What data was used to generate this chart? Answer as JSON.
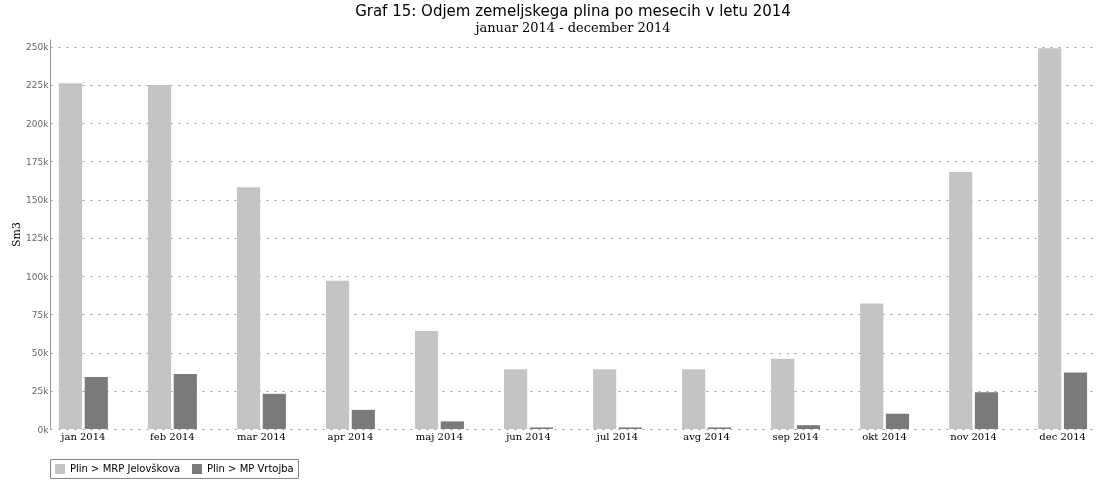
{
  "chart_data": {
    "type": "bar",
    "title": "Graf 15: Odjem zemeljskega plina po mesecih v letu 2014",
    "subtitle": "januar 2014 - december 2014",
    "ylabel": "Sm3",
    "categories": [
      "jan 2014",
      "feb 2014",
      "mar 2014",
      "apr 2014",
      "maj 2014",
      "jun 2014",
      "jul 2014",
      "avg 2014",
      "sep 2014",
      "okt 2014",
      "nov 2014",
      "dec 2014"
    ],
    "series": [
      {
        "name": "Plin > MRP Jelovškova",
        "color": "#c4c4c4",
        "values": [
          226000,
          225000,
          158000,
          97000,
          64000,
          39000,
          39000,
          39000,
          46000,
          82000,
          168000,
          249000
        ]
      },
      {
        "name": "Plin > MP Vrtojba",
        "color": "#7a7a7a",
        "values": [
          34000,
          36000,
          23000,
          12500,
          5000,
          1000,
          1000,
          1000,
          2500,
          10000,
          24000,
          37000
        ]
      }
    ],
    "ylim": [
      0,
      255000
    ],
    "yticks": [
      {
        "value": 0,
        "label": "0k"
      },
      {
        "value": 25000,
        "label": "25k"
      },
      {
        "value": 50000,
        "label": "50k"
      },
      {
        "value": 75000,
        "label": "75k"
      },
      {
        "value": 100000,
        "label": "100k"
      },
      {
        "value": 125000,
        "label": "125k"
      },
      {
        "value": 150000,
        "label": "150k"
      },
      {
        "value": 175000,
        "label": "175k"
      },
      {
        "value": 200000,
        "label": "200k"
      },
      {
        "value": 225000,
        "label": "225k"
      },
      {
        "value": 250000,
        "label": "250k"
      }
    ],
    "grid": "y",
    "legend": "bottom"
  }
}
